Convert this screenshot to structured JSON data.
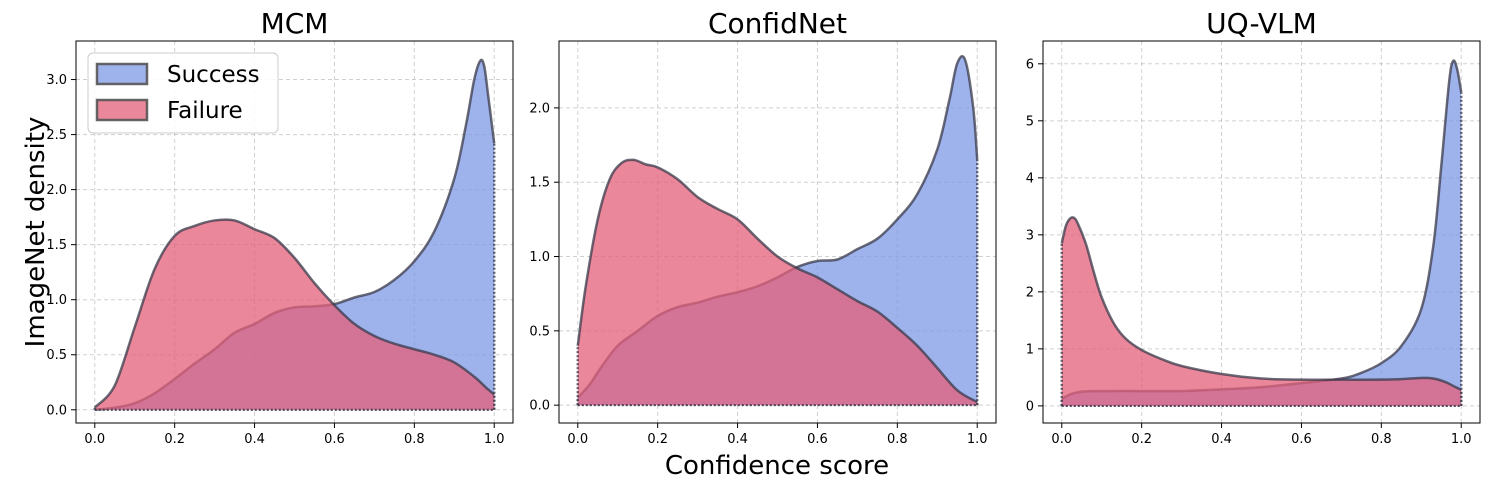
{
  "figure": {
    "xlabel": "Confidence score",
    "ylabel": "ImageNet density",
    "grid": true,
    "legend_location": "top-left of first panel"
  },
  "legend": [
    {
      "name": "Success",
      "color": "#7d98e6"
    },
    {
      "name": "Failure",
      "color": "#e45f7a"
    }
  ],
  "chart_data": [
    {
      "type": "area",
      "title": "MCM",
      "xlim": [
        0,
        1
      ],
      "ylim": [
        -0.12,
        3.35
      ],
      "xticks": [
        0.0,
        0.2,
        0.4,
        0.6,
        0.8,
        1.0
      ],
      "xtick_labels": [
        "0.0",
        "0.2",
        "0.4",
        "0.6",
        "0.8",
        "1.0"
      ],
      "yticks": [
        0.0,
        0.5,
        1.0,
        1.5,
        2.0,
        2.5,
        3.0
      ],
      "ytick_labels": [
        "0.0",
        "0.5",
        "1.0",
        "1.5",
        "2.0",
        "2.5",
        "3.0"
      ],
      "series": [
        {
          "name": "Success",
          "color": "#7d98e6",
          "x": [
            0,
            0.05,
            0.1,
            0.15,
            0.2,
            0.25,
            0.3,
            0.35,
            0.4,
            0.45,
            0.5,
            0.55,
            0.6,
            0.65,
            0.7,
            0.75,
            0.8,
            0.85,
            0.9,
            0.93,
            0.95,
            0.965,
            0.975,
            0.985,
            1.0
          ],
          "y": [
            0.0,
            0.02,
            0.06,
            0.15,
            0.28,
            0.42,
            0.55,
            0.7,
            0.78,
            0.88,
            0.93,
            0.94,
            0.96,
            1.02,
            1.07,
            1.18,
            1.35,
            1.62,
            2.1,
            2.6,
            3.0,
            3.17,
            3.12,
            2.85,
            2.42
          ]
        },
        {
          "name": "Failure",
          "color": "#e45f7a",
          "x": [
            0,
            0.05,
            0.1,
            0.15,
            0.2,
            0.25,
            0.3,
            0.35,
            0.4,
            0.45,
            0.5,
            0.55,
            0.6,
            0.65,
            0.7,
            0.75,
            0.8,
            0.85,
            0.9,
            0.95,
            0.98,
            1.0
          ],
          "y": [
            0.02,
            0.22,
            0.75,
            1.28,
            1.58,
            1.67,
            1.72,
            1.72,
            1.64,
            1.56,
            1.38,
            1.15,
            0.95,
            0.78,
            0.67,
            0.6,
            0.55,
            0.5,
            0.43,
            0.3,
            0.2,
            0.14
          ]
        }
      ]
    },
    {
      "type": "area",
      "title": "ConfidNet",
      "xlim": [
        0,
        1
      ],
      "ylim": [
        -0.12,
        2.45
      ],
      "xticks": [
        0.0,
        0.2,
        0.4,
        0.6,
        0.8,
        1.0
      ],
      "xtick_labels": [
        "0.0",
        "0.2",
        "0.4",
        "0.6",
        "0.8",
        "1.0"
      ],
      "yticks": [
        0.0,
        0.5,
        1.0,
        1.5,
        2.0
      ],
      "ytick_labels": [
        "0.0",
        "0.5",
        "1.0",
        "1.5",
        "2.0"
      ],
      "series": [
        {
          "name": "Success",
          "color": "#7d98e6",
          "x": [
            0,
            0.03,
            0.06,
            0.1,
            0.15,
            0.2,
            0.25,
            0.3,
            0.35,
            0.4,
            0.45,
            0.5,
            0.55,
            0.6,
            0.65,
            0.7,
            0.75,
            0.8,
            0.85,
            0.9,
            0.93,
            0.95,
            0.97,
            0.99,
            1.0
          ],
          "y": [
            0.05,
            0.14,
            0.26,
            0.4,
            0.5,
            0.6,
            0.66,
            0.69,
            0.73,
            0.76,
            0.8,
            0.86,
            0.93,
            0.97,
            0.98,
            1.05,
            1.12,
            1.25,
            1.42,
            1.72,
            2.05,
            2.3,
            2.32,
            2.0,
            1.65
          ]
        },
        {
          "name": "Failure",
          "color": "#e45f7a",
          "x": [
            0,
            0.02,
            0.05,
            0.08,
            0.11,
            0.14,
            0.17,
            0.2,
            0.25,
            0.3,
            0.35,
            0.4,
            0.45,
            0.5,
            0.55,
            0.6,
            0.65,
            0.7,
            0.75,
            0.8,
            0.85,
            0.9,
            0.95,
            1.0
          ],
          "y": [
            0.4,
            0.8,
            1.25,
            1.52,
            1.63,
            1.65,
            1.62,
            1.6,
            1.52,
            1.4,
            1.32,
            1.25,
            1.12,
            1.0,
            0.92,
            0.86,
            0.78,
            0.7,
            0.63,
            0.52,
            0.4,
            0.25,
            0.1,
            0.02
          ]
        }
      ]
    },
    {
      "type": "area",
      "title": "UQ-VLM",
      "xlim": [
        0,
        1
      ],
      "ylim": [
        -0.3,
        6.4
      ],
      "xticks": [
        0.0,
        0.2,
        0.4,
        0.6,
        0.8,
        1.0
      ],
      "xtick_labels": [
        "0.0",
        "0.2",
        "0.4",
        "0.6",
        "0.8",
        "1.0"
      ],
      "yticks": [
        0,
        1,
        2,
        3,
        4,
        5,
        6
      ],
      "ytick_labels": [
        "0",
        "1",
        "2",
        "3",
        "4",
        "5",
        "6"
      ],
      "series": [
        {
          "name": "Success",
          "color": "#7d98e6",
          "x": [
            0,
            0.02,
            0.05,
            0.1,
            0.2,
            0.3,
            0.4,
            0.5,
            0.6,
            0.7,
            0.75,
            0.8,
            0.85,
            0.9,
            0.93,
            0.95,
            0.97,
            0.98,
            0.99,
            1.0
          ],
          "y": [
            0.12,
            0.2,
            0.25,
            0.26,
            0.26,
            0.26,
            0.29,
            0.33,
            0.4,
            0.48,
            0.58,
            0.75,
            1.05,
            1.7,
            2.8,
            4.2,
            5.7,
            6.05,
            5.9,
            5.5
          ]
        },
        {
          "name": "Failure",
          "color": "#e45f7a",
          "x": [
            0,
            0.01,
            0.02,
            0.03,
            0.04,
            0.06,
            0.08,
            0.1,
            0.13,
            0.16,
            0.2,
            0.25,
            0.3,
            0.4,
            0.5,
            0.6,
            0.7,
            0.8,
            0.85,
            0.9,
            0.93,
            0.96,
            0.98,
            1.0
          ],
          "y": [
            2.85,
            3.15,
            3.28,
            3.3,
            3.2,
            2.85,
            2.35,
            1.9,
            1.45,
            1.18,
            0.98,
            0.82,
            0.7,
            0.56,
            0.48,
            0.46,
            0.46,
            0.46,
            0.47,
            0.49,
            0.48,
            0.42,
            0.35,
            0.28
          ]
        }
      ]
    }
  ]
}
